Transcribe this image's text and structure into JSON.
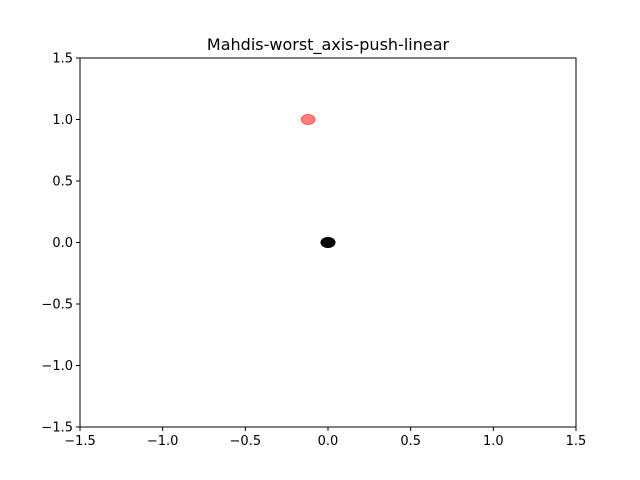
{
  "chart_data": {
    "type": "scatter",
    "title": "Mahdis-worst_axis-push-linear",
    "xlabel": "",
    "ylabel": "",
    "xlim": [
      -1.5,
      1.5
    ],
    "ylim": [
      -1.5,
      1.5
    ],
    "xticks": [
      -1.5,
      -1.0,
      -0.5,
      0.0,
      0.5,
      1.0,
      1.5
    ],
    "yticks": [
      -1.5,
      -1.0,
      -0.5,
      0.0,
      0.5,
      1.0,
      1.5
    ],
    "xtick_labels": [
      "−1.5",
      "−1.0",
      "−0.5",
      "0.0",
      "0.5",
      "1.0",
      "1.5"
    ],
    "ytick_labels": [
      "−1.5",
      "−1.0",
      "−0.5",
      "0.0",
      "0.5",
      "1.0",
      "1.5"
    ],
    "grid": false,
    "points": [
      {
        "x": -0.12,
        "y": 1.0,
        "color": "#ff0000",
        "alpha": 0.5
      },
      {
        "x": 0.0,
        "y": 0.0,
        "color": "#000000",
        "alpha": 1.0
      }
    ]
  }
}
